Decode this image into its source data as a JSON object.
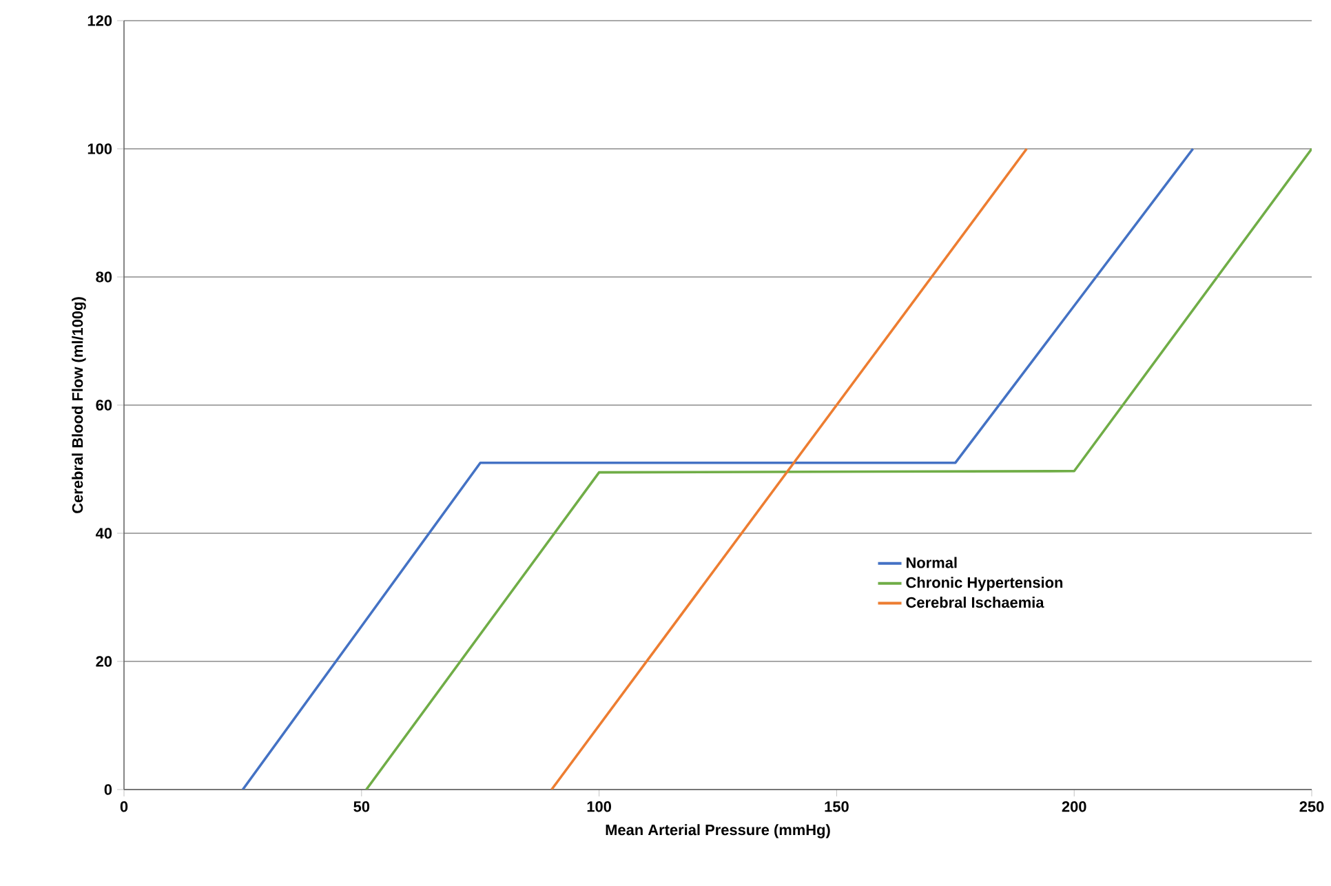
{
  "chart_data": {
    "type": "line",
    "xlabel": "Mean Arterial Pressure (mmHg)",
    "ylabel": "Cerebral Blood Flow (ml/100g)",
    "xlim": [
      0,
      250
    ],
    "ylim": [
      0,
      120
    ],
    "xticks": [
      0,
      50,
      100,
      150,
      200,
      250
    ],
    "yticks": [
      0,
      20,
      40,
      60,
      80,
      100,
      120
    ],
    "grid": "y",
    "legend": "right",
    "marker": "none",
    "line_style": "solid",
    "series": [
      {
        "name": "Normal",
        "color": "#4472c4",
        "x": [
          25,
          75,
          175,
          225
        ],
        "values": [
          0,
          51,
          51,
          100
        ]
      },
      {
        "name": "Chronic Hypertension",
        "color": "#70ad47",
        "x": [
          51,
          100,
          200,
          250
        ],
        "values": [
          0,
          49.5,
          49.7,
          100
        ]
      },
      {
        "name": "Cerebral Ischaemia",
        "color": "#ed7d31",
        "x": [
          90,
          190
        ],
        "values": [
          0,
          100
        ]
      }
    ]
  }
}
